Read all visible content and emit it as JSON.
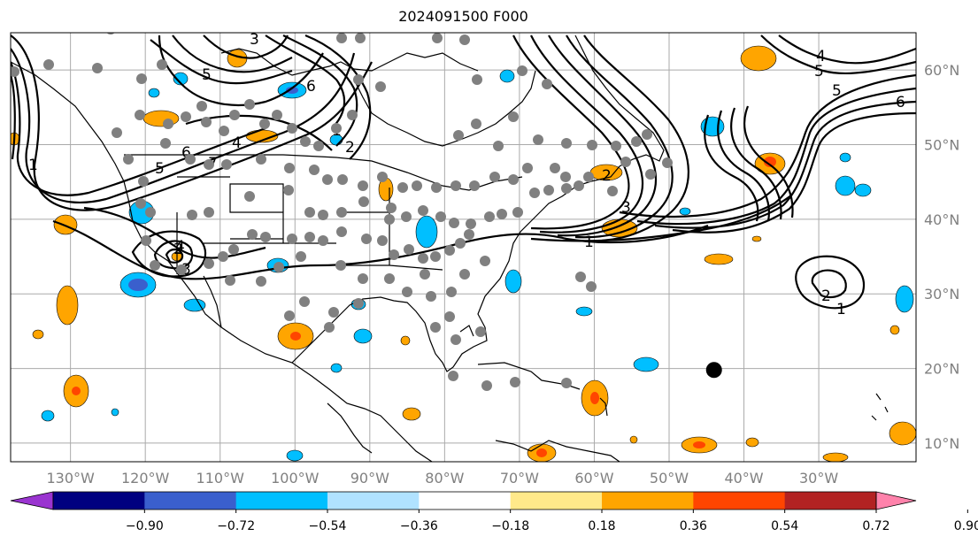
{
  "title": "2024091500 F000",
  "lon_labels": [
    "130°W",
    "120°W",
    "110°W",
    "100°W",
    "90°W",
    "80°W",
    "70°W",
    "60°W",
    "50°W",
    "40°W",
    "30°W"
  ],
  "lat_labels": [
    "60°N",
    "50°N",
    "40°N",
    "30°N",
    "20°N",
    "10°N"
  ],
  "colorbar": {
    "ticks": [
      "−0.90",
      "−0.72",
      "−0.54",
      "−0.36",
      "−0.18",
      "0.18",
      "0.36",
      "0.54",
      "0.72",
      "0.90"
    ],
    "colors": [
      "#9a34d0",
      "#000080",
      "#3a5fcd",
      "#00bfff",
      "#b0e2ff",
      "#ffffff",
      "#ffe98a",
      "#ffa500",
      "#ff4500",
      "#b22222",
      "#ff82ab"
    ]
  },
  "contour_labels": [
    "1",
    "2",
    "3",
    "4",
    "5",
    "6",
    "7",
    "1",
    "2",
    "3",
    "4",
    "5",
    "6",
    "1",
    "2",
    "4",
    "5",
    "6",
    "3",
    "5",
    "2",
    "1"
  ],
  "map": {
    "extent": {
      "lon_min": -138,
      "lon_max": -17,
      "lat_min": 7.5,
      "lat_max": 65
    },
    "stations_color": "#808080",
    "marker_color": "#000000",
    "marker": {
      "lon": -44,
      "lat": 19.8
    }
  }
}
